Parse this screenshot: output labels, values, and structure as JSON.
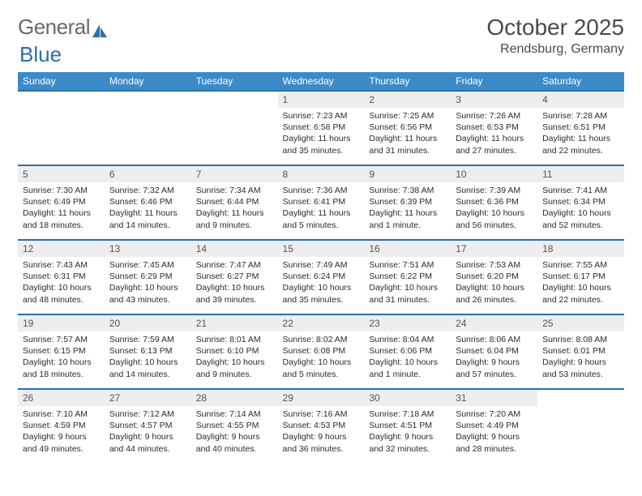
{
  "brand": {
    "word1": "General",
    "word2": "Blue",
    "color1": "#6a6a6a",
    "color2": "#2f6fa3"
  },
  "title": "October 2025",
  "location": "Rendsburg, Germany",
  "colors": {
    "header_bg": "#3b8bc9",
    "row_border": "#2f6fa3",
    "daynum_bg": "#eceeef"
  },
  "weekdays": [
    "Sunday",
    "Monday",
    "Tuesday",
    "Wednesday",
    "Thursday",
    "Friday",
    "Saturday"
  ],
  "weeks": [
    [
      null,
      null,
      null,
      {
        "n": "1",
        "sunrise": "7:23 AM",
        "sunset": "6:58 PM",
        "daylight": "11 hours and 35 minutes."
      },
      {
        "n": "2",
        "sunrise": "7:25 AM",
        "sunset": "6:56 PM",
        "daylight": "11 hours and 31 minutes."
      },
      {
        "n": "3",
        "sunrise": "7:26 AM",
        "sunset": "6:53 PM",
        "daylight": "11 hours and 27 minutes."
      },
      {
        "n": "4",
        "sunrise": "7:28 AM",
        "sunset": "6:51 PM",
        "daylight": "11 hours and 22 minutes."
      }
    ],
    [
      {
        "n": "5",
        "sunrise": "7:30 AM",
        "sunset": "6:49 PM",
        "daylight": "11 hours and 18 minutes."
      },
      {
        "n": "6",
        "sunrise": "7:32 AM",
        "sunset": "6:46 PM",
        "daylight": "11 hours and 14 minutes."
      },
      {
        "n": "7",
        "sunrise": "7:34 AM",
        "sunset": "6:44 PM",
        "daylight": "11 hours and 9 minutes."
      },
      {
        "n": "8",
        "sunrise": "7:36 AM",
        "sunset": "6:41 PM",
        "daylight": "11 hours and 5 minutes."
      },
      {
        "n": "9",
        "sunrise": "7:38 AM",
        "sunset": "6:39 PM",
        "daylight": "11 hours and 1 minute."
      },
      {
        "n": "10",
        "sunrise": "7:39 AM",
        "sunset": "6:36 PM",
        "daylight": "10 hours and 56 minutes."
      },
      {
        "n": "11",
        "sunrise": "7:41 AM",
        "sunset": "6:34 PM",
        "daylight": "10 hours and 52 minutes."
      }
    ],
    [
      {
        "n": "12",
        "sunrise": "7:43 AM",
        "sunset": "6:31 PM",
        "daylight": "10 hours and 48 minutes."
      },
      {
        "n": "13",
        "sunrise": "7:45 AM",
        "sunset": "6:29 PM",
        "daylight": "10 hours and 43 minutes."
      },
      {
        "n": "14",
        "sunrise": "7:47 AM",
        "sunset": "6:27 PM",
        "daylight": "10 hours and 39 minutes."
      },
      {
        "n": "15",
        "sunrise": "7:49 AM",
        "sunset": "6:24 PM",
        "daylight": "10 hours and 35 minutes."
      },
      {
        "n": "16",
        "sunrise": "7:51 AM",
        "sunset": "6:22 PM",
        "daylight": "10 hours and 31 minutes."
      },
      {
        "n": "17",
        "sunrise": "7:53 AM",
        "sunset": "6:20 PM",
        "daylight": "10 hours and 26 minutes."
      },
      {
        "n": "18",
        "sunrise": "7:55 AM",
        "sunset": "6:17 PM",
        "daylight": "10 hours and 22 minutes."
      }
    ],
    [
      {
        "n": "19",
        "sunrise": "7:57 AM",
        "sunset": "6:15 PM",
        "daylight": "10 hours and 18 minutes."
      },
      {
        "n": "20",
        "sunrise": "7:59 AM",
        "sunset": "6:13 PM",
        "daylight": "10 hours and 14 minutes."
      },
      {
        "n": "21",
        "sunrise": "8:01 AM",
        "sunset": "6:10 PM",
        "daylight": "10 hours and 9 minutes."
      },
      {
        "n": "22",
        "sunrise": "8:02 AM",
        "sunset": "6:08 PM",
        "daylight": "10 hours and 5 minutes."
      },
      {
        "n": "23",
        "sunrise": "8:04 AM",
        "sunset": "6:06 PM",
        "daylight": "10 hours and 1 minute."
      },
      {
        "n": "24",
        "sunrise": "8:06 AM",
        "sunset": "6:04 PM",
        "daylight": "9 hours and 57 minutes."
      },
      {
        "n": "25",
        "sunrise": "8:08 AM",
        "sunset": "6:01 PM",
        "daylight": "9 hours and 53 minutes."
      }
    ],
    [
      {
        "n": "26",
        "sunrise": "7:10 AM",
        "sunset": "4:59 PM",
        "daylight": "9 hours and 49 minutes."
      },
      {
        "n": "27",
        "sunrise": "7:12 AM",
        "sunset": "4:57 PM",
        "daylight": "9 hours and 44 minutes."
      },
      {
        "n": "28",
        "sunrise": "7:14 AM",
        "sunset": "4:55 PM",
        "daylight": "9 hours and 40 minutes."
      },
      {
        "n": "29",
        "sunrise": "7:16 AM",
        "sunset": "4:53 PM",
        "daylight": "9 hours and 36 minutes."
      },
      {
        "n": "30",
        "sunrise": "7:18 AM",
        "sunset": "4:51 PM",
        "daylight": "9 hours and 32 minutes."
      },
      {
        "n": "31",
        "sunrise": "7:20 AM",
        "sunset": "4:49 PM",
        "daylight": "9 hours and 28 minutes."
      },
      null
    ]
  ],
  "labels": {
    "sunrise": "Sunrise: ",
    "sunset": "Sunset: ",
    "daylight": "Daylight: "
  }
}
